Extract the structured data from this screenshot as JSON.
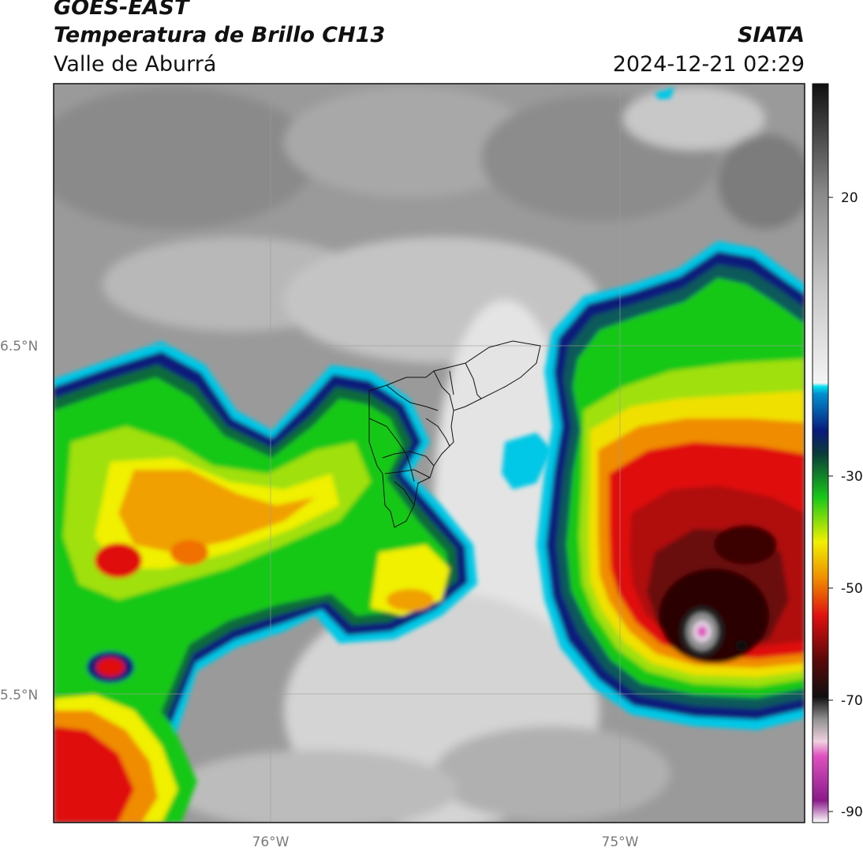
{
  "header": {
    "title_line1": "GOES-EAST",
    "title_line2": "Temperatura de Brillo CH13",
    "subtitle": "Valle de Aburrá",
    "brand": "SIATA",
    "timestamp": "2024-12-21 02:29"
  },
  "map": {
    "lat_labels": [
      "6.5°N",
      "5.5°N"
    ],
    "lon_labels": [
      "76°W",
      "75°W"
    ],
    "grid_lines": true
  },
  "colorbar": {
    "tick_labels": [
      "20",
      "-30",
      "-50",
      "-70",
      "-90"
    ],
    "range": [
      -90,
      40
    ],
    "colors": {
      "warm_gray_dark": "#8a8a8a",
      "warm_gray_light": "#d9d9d9",
      "near_white": "#f2f2f2",
      "cyan": "#00c8e6",
      "navy": "#0a1a7a",
      "green": "#18c818",
      "yellow": "#f0f000",
      "orange": "#f08c00",
      "red": "#e01010",
      "dark_red": "#5a0808",
      "black": "#101010",
      "pink": "#e050c0",
      "purple": "#8a1a8a"
    }
  }
}
